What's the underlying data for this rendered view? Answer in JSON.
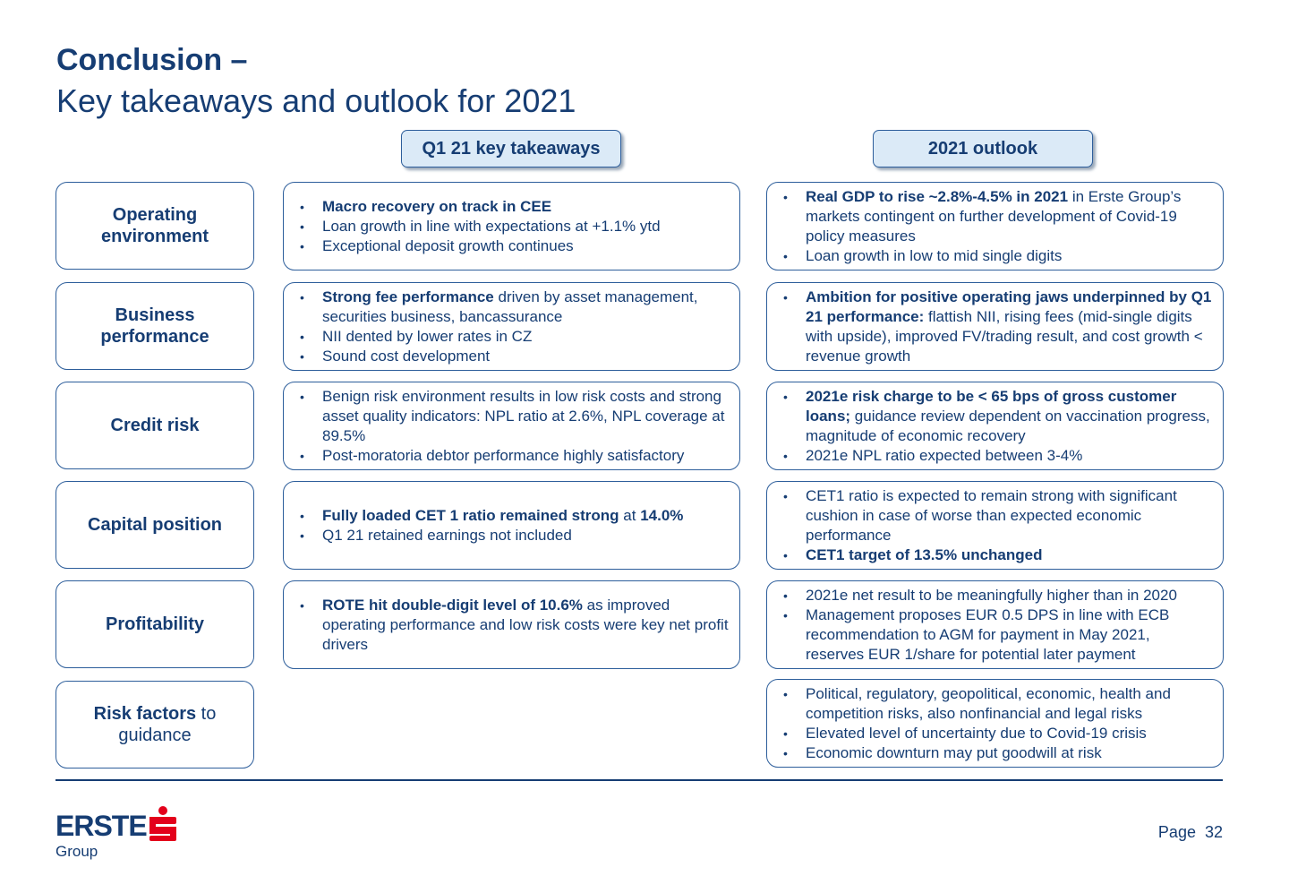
{
  "title": {
    "line1": "Conclusion –",
    "line2": "Key takeaways and outlook for 2021"
  },
  "columns": {
    "mid": "Q1 21 key takeaways",
    "right": "2021 outlook"
  },
  "rows": [
    {
      "label": "Operating environment",
      "takeaways": [
        {
          "bold": "Macro recovery on track in CEE",
          "text": ""
        },
        {
          "bold": "",
          "text": "Loan growth in line with expectations  at +1.1% ytd"
        },
        {
          "bold": "",
          "text": "Exceptional deposit growth continues"
        }
      ],
      "outlook": [
        {
          "bold": "Real GDP to rise ~2.8%-4.5% in 2021",
          "text": " in Erste Group’s markets contingent on further development of Covid-19 policy measures"
        },
        {
          "bold": "",
          "text": "Loan growth in low to mid single digits"
        }
      ]
    },
    {
      "label": "Business performance",
      "takeaways": [
        {
          "bold": "Strong fee performance",
          "text": " driven by asset management, securities business, bancassurance"
        },
        {
          "bold": "",
          "text": "NII dented by lower rates in CZ"
        },
        {
          "bold": "",
          "text": "Sound cost development"
        }
      ],
      "outlook": [
        {
          "bold": "Ambition for positive operating jaws underpinned by Q1 21 performance:",
          "text": " flattish NII, rising fees (mid-single digits with upside), improved FV/trading result, and cost growth < revenue growth"
        }
      ]
    },
    {
      "label": "Credit risk",
      "takeaways": [
        {
          "bold": "",
          "text": "Benign risk environment results in low risk costs and strong asset quality indicators: NPL ratio at 2.6%, NPL coverage at 89.5%"
        },
        {
          "bold": "",
          "text": "Post-moratoria debtor performance highly satisfactory"
        }
      ],
      "outlook": [
        {
          "bold": "2021e risk charge to be < 65 bps of gross customer loans;",
          "text": " guidance review dependent on vaccination progress, magnitude of economic recovery"
        },
        {
          "bold": "",
          "text": "2021e NPL ratio expected between 3-4%"
        }
      ]
    },
    {
      "label": "Capital position",
      "takeaways": [
        {
          "bold": "Fully loaded CET 1 ratio remained strong",
          "text": " at ",
          "bold2": "14.0%"
        },
        {
          "bold": "",
          "text": "Q1 21 retained earnings not included"
        }
      ],
      "outlook": [
        {
          "bold": "",
          "text": "CET1 ratio is expected to remain strong with significant cushion in case of worse than expected economic performance"
        },
        {
          "bold": "CET1 target of 13.5% unchanged",
          "text": ""
        }
      ]
    },
    {
      "label": "Profitability",
      "takeaways": [
        {
          "bold": "ROTE hit double-digit level of 10.6%",
          "text": " as improved operating performance and low risk costs were key net profit drivers"
        }
      ],
      "outlook": [
        {
          "bold": "",
          "text": "2021e net result to be meaningfully higher than in 2020"
        },
        {
          "bold": "",
          "text": "Management proposes EUR 0.5 DPS in line with ECB recommendation to AGM for payment in May 2021, reserves EUR 1/share for potential later payment"
        }
      ]
    },
    {
      "label_bold": "Risk factors",
      "label_rest": " to guidance",
      "takeaways": [],
      "outlook": [
        {
          "bold": "",
          "text": "Political, regulatory, geopolitical, economic, health and competition risks, also nonfinancial and legal risks"
        },
        {
          "bold": "",
          "text": "Elevated level of uncertainty due to Covid-19 crisis"
        },
        {
          "bold": "",
          "text": "Economic downturn may put goodwill at risk"
        }
      ]
    }
  ],
  "footer": {
    "logo": "ERSTE",
    "logo_sub": "Group",
    "page_label": "Page",
    "page_number": "32",
    "brand_red": "#e3001b",
    "brand_blue": "#163d73"
  }
}
